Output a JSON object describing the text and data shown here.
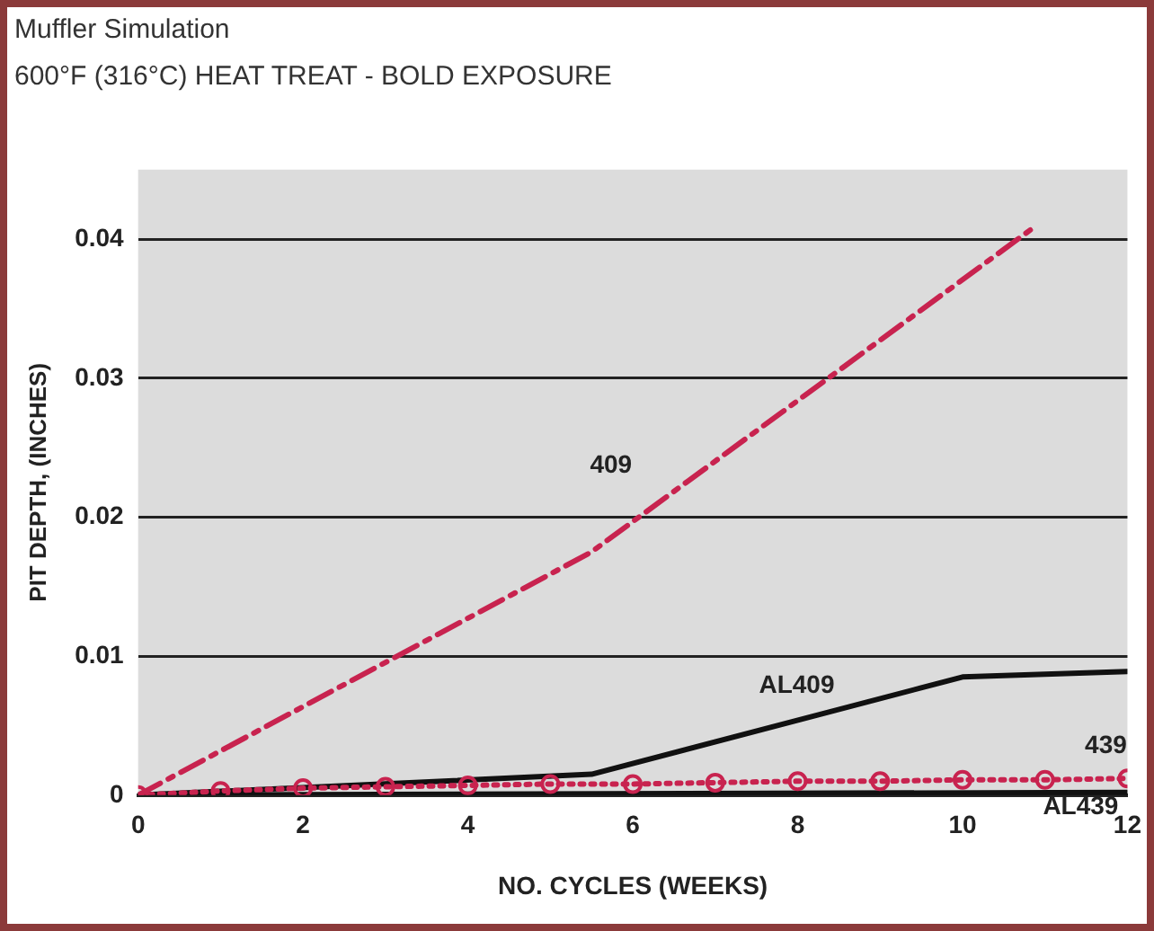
{
  "chart_data": {
    "type": "line",
    "title": "Muffler Simulation",
    "subtitle": "600°F (316°C) HEAT TREAT - BOLD EXPOSURE",
    "xlabel": "NO. CYCLES (WEEKS)",
    "ylabel": "PIT DEPTH, (INCHES)",
    "xlim": [
      0,
      12
    ],
    "xticks": [
      0,
      2,
      4,
      6,
      8,
      10,
      12
    ],
    "ylim": [
      0,
      0.045
    ],
    "yticks": [
      0,
      0.01,
      0.02,
      0.03,
      0.04
    ],
    "grid": "y",
    "legend": false,
    "series": [
      {
        "name": "409",
        "color": "#c8234f",
        "line_style": "dashed",
        "marker": "none",
        "x": [
          0,
          5.5,
          10.9
        ],
        "values": [
          0,
          0.0175,
          0.041
        ]
      },
      {
        "name": "AL409",
        "color": "#111111",
        "line_style": "solid",
        "marker": "none",
        "x": [
          0,
          5.5,
          10,
          12
        ],
        "values": [
          0,
          0.0015,
          0.0085,
          0.0089
        ]
      },
      {
        "name": "439",
        "color": "#c8234f",
        "line_style": "dotted",
        "marker": "circle",
        "x": [
          0,
          1,
          2,
          3,
          4,
          5,
          6,
          7,
          8,
          9,
          10,
          11,
          12
        ],
        "values": [
          0,
          0.0003,
          0.0005,
          0.0006,
          0.0007,
          0.0008,
          0.0008,
          0.0009,
          0.001,
          0.001,
          0.0011,
          0.0011,
          0.0012
        ]
      },
      {
        "name": "AL439",
        "color": "#111111",
        "line_style": "solid",
        "marker": "none",
        "x": [
          0,
          12
        ],
        "values": [
          0,
          0.0002
        ]
      }
    ]
  }
}
